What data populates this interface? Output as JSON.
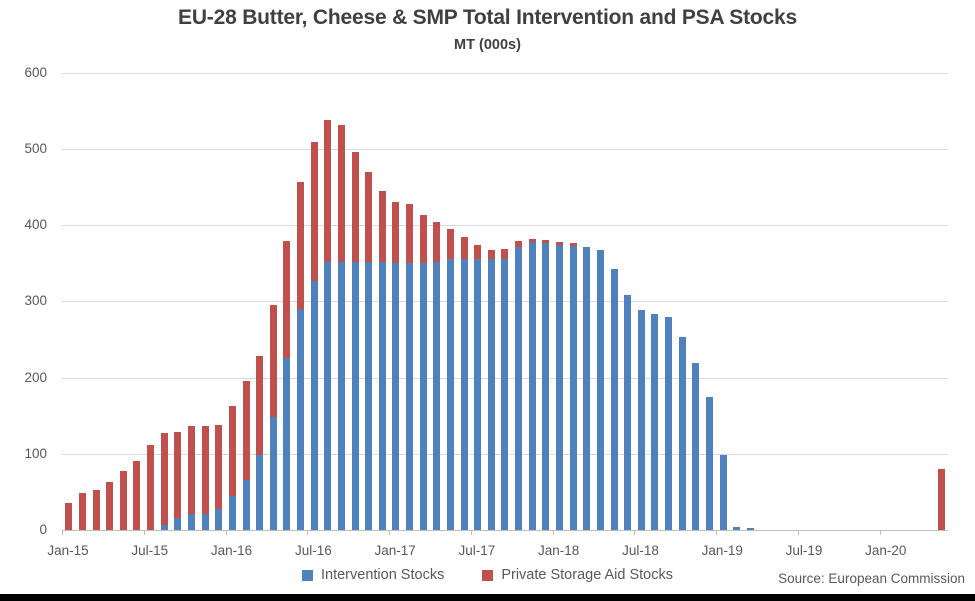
{
  "chart_data": {
    "type": "bar",
    "stacked": true,
    "title": "EU-28 Butter, Cheese & SMP Total Intervention and PSA Stocks",
    "subtitle": "MT (000s)",
    "source": "Source: European Commission",
    "legend_position": "bottom",
    "grid": "horizontal",
    "ylim": [
      0,
      600
    ],
    "yticks": [
      0,
      100,
      200,
      300,
      400,
      500,
      600
    ],
    "xtick_labels": [
      "Jan-15",
      "Jul-15",
      "Jan-16",
      "Jul-16",
      "Jan-17",
      "Jul-17",
      "Jan-18",
      "Jul-18",
      "Jan-19",
      "Jul-19",
      "Jan-20"
    ],
    "xtick_month_index": [
      0,
      6,
      12,
      18,
      24,
      30,
      36,
      42,
      48,
      54,
      60
    ],
    "categories": [
      "Jan-15",
      "Feb-15",
      "Mar-15",
      "Apr-15",
      "May-15",
      "Jun-15",
      "Jul-15",
      "Aug-15",
      "Sep-15",
      "Oct-15",
      "Nov-15",
      "Dec-15",
      "Jan-16",
      "Feb-16",
      "Mar-16",
      "Apr-16",
      "May-16",
      "Jun-16",
      "Jul-16",
      "Aug-16",
      "Sep-16",
      "Oct-16",
      "Nov-16",
      "Dec-16",
      "Jan-17",
      "Feb-17",
      "Mar-17",
      "Apr-17",
      "May-17",
      "Jun-17",
      "Jul-17",
      "Aug-17",
      "Sep-17",
      "Oct-17",
      "Nov-17",
      "Dec-17",
      "Jan-18",
      "Feb-18",
      "Mar-18",
      "Apr-18",
      "May-18",
      "Jun-18",
      "Jul-18",
      "Aug-18",
      "Sep-18",
      "Oct-18",
      "Nov-18",
      "Dec-18",
      "Jan-19",
      "Feb-19",
      "Mar-19",
      "Apr-19",
      "May-19",
      "Jun-19",
      "Jul-19",
      "Aug-19",
      "Sep-19",
      "Oct-19",
      "Nov-19",
      "Dec-19",
      "Jan-20",
      "Feb-20",
      "Mar-20",
      "Apr-20",
      "May-20"
    ],
    "series": [
      {
        "name": "Intervention Stocks",
        "color": "#4F81BD",
        "values": [
          0,
          0,
          0,
          0,
          0,
          0,
          0,
          6,
          16,
          21,
          21,
          27,
          44,
          65,
          98,
          148,
          225,
          290,
          327,
          352,
          352,
          351,
          351,
          351,
          350,
          350,
          350,
          352,
          356,
          356,
          356,
          355,
          356,
          371,
          378,
          376,
          374,
          372,
          371,
          367,
          342,
          308,
          288,
          283,
          280,
          253,
          219,
          174,
          98,
          4,
          2,
          0,
          0,
          0,
          0,
          0,
          0,
          0,
          0,
          0,
          0,
          0,
          0,
          0,
          0
        ]
      },
      {
        "name": "Private Storage Aid Stocks",
        "color": "#C0504D",
        "values": [
          36,
          48,
          53,
          63,
          77,
          90,
          111,
          121,
          112,
          116,
          116,
          111,
          118,
          130,
          130,
          147,
          154,
          166,
          182,
          186,
          179,
          145,
          119,
          94,
          80,
          78,
          63,
          52,
          39,
          28,
          18,
          12,
          12,
          8,
          4,
          4,
          4,
          4,
          0,
          0,
          0,
          0,
          0,
          0,
          0,
          0,
          0,
          0,
          0,
          0,
          0,
          0,
          0,
          0,
          0,
          0,
          0,
          0,
          0,
          0,
          0,
          0,
          0,
          0,
          80
        ]
      }
    ],
    "colors": {
      "grid": "#D9D9D9",
      "axis": "#BFBFBF",
      "text": "#595959",
      "title": "#404040"
    }
  }
}
